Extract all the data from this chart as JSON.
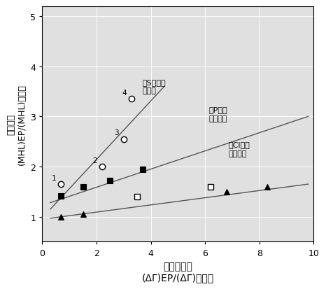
{
  "xlabel_line1": "化学反应性",
  "xlabel_line2": "(ΔΓ)EP/(ΔΓ)基础油",
  "ylabel_line1": "载荷性能",
  "ylabel_line2": "(MHL)EP/(MHL)基础油",
  "xlim": [
    0,
    10
  ],
  "ylim": [
    0.5,
    5.2
  ],
  "xticks": [
    0,
    2,
    4,
    6,
    8,
    10
  ],
  "yticks": [
    1,
    2,
    3,
    4,
    5
  ],
  "series_S": {
    "x_data": [
      0.7,
      2.2,
      3.0,
      3.3
    ],
    "y_data": [
      1.65,
      2.0,
      2.55,
      3.35
    ],
    "numbers": [
      "1",
      "2",
      "3",
      "4"
    ],
    "line_x": [
      0.3,
      4.5
    ],
    "line_y": [
      1.15,
      3.6
    ]
  },
  "series_P": {
    "x_data": [
      0.7,
      1.5,
      2.5,
      3.7
    ],
    "y_data": [
      1.42,
      1.6,
      1.72,
      1.95
    ],
    "line_x": [
      0.3,
      9.8
    ],
    "line_y": [
      1.28,
      3.0
    ]
  },
  "series_Cl_triangles": {
    "x_data": [
      0.7,
      1.5,
      6.8,
      8.3
    ],
    "y_data": [
      1.0,
      1.05,
      1.5,
      1.6
    ]
  },
  "series_Cl_open_squares": {
    "x_data": [
      3.5,
      6.2
    ],
    "y_data": [
      1.4,
      1.6
    ]
  },
  "cl_line_x": [
    0.3,
    9.8
  ],
  "cl_line_y": [
    0.97,
    1.65
  ],
  "ann_S_x": 3.7,
  "ann_S_y": 3.45,
  "ann_S_text": "含S系极压\n剂的油",
  "ann_P_x": 6.15,
  "ann_P_y": 2.9,
  "ann_P_text": "含P系极\n压剂的油",
  "ann_Cl_x": 6.85,
  "ann_Cl_y": 2.2,
  "ann_Cl_text": "含Cl系极\n压剂的油",
  "background_color": "#ffffff"
}
